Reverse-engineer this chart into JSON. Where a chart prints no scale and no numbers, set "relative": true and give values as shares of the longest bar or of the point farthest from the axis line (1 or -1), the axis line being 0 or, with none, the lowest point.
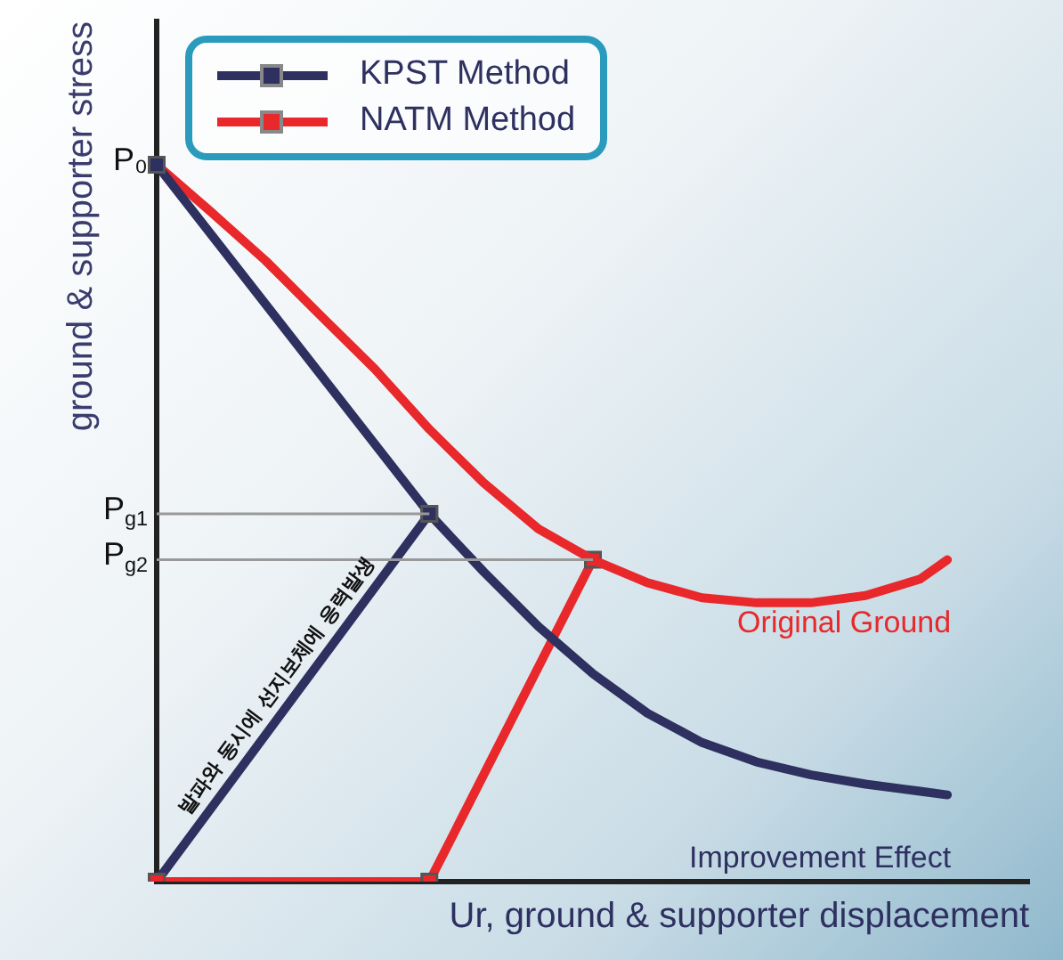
{
  "chart_data": {
    "type": "line",
    "relative": true,
    "xlabel": "Ur, ground & supporter displacement",
    "ylabel": "ground & supporter stress",
    "legend": "top left",
    "categories": [
      null,
      null,
      null,
      null,
      null,
      null,
      null,
      null,
      null,
      null,
      null,
      null,
      null,
      null,
      null,
      null,
      null,
      null,
      null,
      null,
      null,
      null,
      null,
      null,
      null,
      null,
      null,
      null,
      null,
      null,
      null,
      null,
      null
    ],
    "series": [
      {
        "color": "#2e3060",
        "marker": "square",
        "values": [
          1,
          null,
          null,
          null,
          null,
          null,
          null,
          null,
          null,
          null,
          0.513,
          null,
          null,
          null,
          null,
          null,
          null,
          null,
          null,
          null,
          null,
          null,
          null,
          null,
          null,
          null,
          null,
          null,
          null,
          null,
          null,
          null,
          null
        ]
      },
      {
        "color": "#2e3060",
        "marker": "none",
        "values": [
          null,
          null,
          null,
          null,
          null,
          null,
          null,
          null,
          null,
          null,
          0.513,
          null,
          0.432,
          null,
          0.356,
          null,
          0.29,
          null,
          0.235,
          null,
          0.194,
          null,
          0.167,
          null,
          0.149,
          null,
          0.136,
          null,
          0.126,
          0.121,
          null,
          null,
          null
        ]
      },
      {
        "color": "#e8282b",
        "marker": "none",
        "values": [
          1,
          null,
          0.934,
          null,
          0.866,
          null,
          0.79,
          null,
          0.715,
          null,
          0.631,
          null,
          0.556,
          null,
          0.492,
          null,
          0.449,
          null,
          0.417,
          null,
          0.396,
          null,
          0.389,
          null,
          0.389,
          null,
          0.399,
          null,
          0.422,
          0.449,
          null,
          null,
          null
        ]
      },
      {
        "name": "NATM Method",
        "color": "#e8282b",
        "marker": "square",
        "values": [
          0,
          null,
          null,
          null,
          null,
          null,
          null,
          null,
          null,
          null,
          0,
          null,
          null,
          null,
          null,
          null,
          0.449,
          null,
          null,
          null,
          null,
          null,
          null,
          null,
          null,
          null,
          null,
          null,
          null,
          null,
          null,
          null,
          null
        ]
      },
      {
        "name": "KPST Method",
        "color": "#2e3060",
        "marker": "square",
        "values": [
          0,
          null,
          null,
          null,
          null,
          null,
          null,
          null,
          null,
          null,
          0.513,
          null,
          null,
          null,
          null,
          null,
          null,
          null,
          null,
          null,
          null,
          null,
          null,
          null,
          null,
          null,
          null,
          null,
          null,
          null,
          null,
          null,
          null
        ]
      }
    ],
    "annotations": [
      "P₀",
      "P$_{g1}$",
      "P$_{g2}$",
      "발파와 동시에 선지보체에 응력발생",
      "Original Ground",
      "Improvement Effect"
    ]
  }
}
